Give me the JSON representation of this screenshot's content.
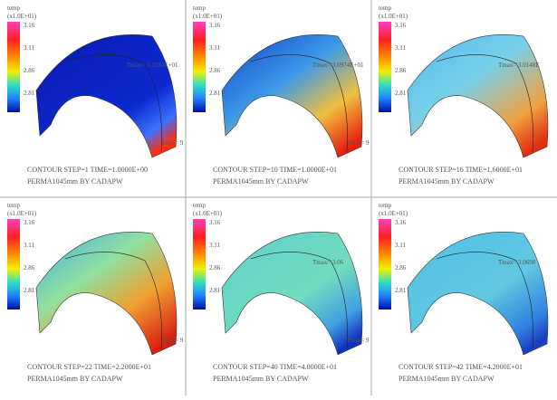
{
  "figure": {
    "panels": [
      {
        "legend_title": "temp",
        "legend_unit": "(x1.0E+01)",
        "scale": [
          "3.16",
          "3.11",
          "2.86",
          "2.81"
        ],
        "max_label": "Tmax= 3.1584E+01",
        "min_label": "Tmin= 9",
        "contour": "CONTOUR  STEP=1   TIME=1.0000E+00",
        "model": "PERMA1045mm BY CADAPW"
      },
      {
        "legend_title": "temp",
        "legend_unit": "(x1.0E+01)",
        "scale": [
          "3.16",
          "3.11",
          "2.86",
          "2.81"
        ],
        "max_label": "Tmax= 3.0974E+01",
        "min_label": "Tmin= 9",
        "contour": "CONTOUR  STEP=10  TIME=1.0000E+01",
        "model": "PERMA1045mm BY CADAPW"
      },
      {
        "legend_title": "temp",
        "legend_unit": "(x1.0E+01)",
        "scale": [
          "3.16",
          "3.11",
          "2.86",
          "2.81"
        ],
        "max_label": "Tmax= 3.0148E",
        "min_label": "",
        "contour": "CONTOUR  STEP=16  TIME=1.6000E+01",
        "model": "PERMA1045mm BY CADAPW"
      },
      {
        "legend_title": "temp",
        "legend_unit": "(x1.0E+01)",
        "scale": [
          "3.16",
          "3.11",
          "2.86",
          "2.81"
        ],
        "max_label": "",
        "min_label": "Tmin= 9",
        "contour": "CONTOUR  STEP=22  TIME=2.2000E+01",
        "model": "PERMA1045mm BY CADAPW"
      },
      {
        "legend_title": "temp",
        "legend_unit": "(x1.0E+01)",
        "scale": [
          "3.16",
          "3.11",
          "2.86",
          "2.81"
        ],
        "max_label": "Tmax= 3.06",
        "min_label": "Tmin= 9",
        "contour": "CONTOUR  STEP=40  TIME=4.0000E+01",
        "model": "PERMA1045mm BY CADAPW"
      },
      {
        "legend_title": "temp",
        "legend_unit": "(x1.0E+01)",
        "scale": [
          "3.16",
          "3.11",
          "2.86",
          "2.81"
        ],
        "max_label": "Tmax= 3.0698",
        "min_label": "",
        "contour": "CONTOUR  STEP=42  TIME=4.2000E+01",
        "model": "PERMA1045mm BY CADAPW"
      }
    ]
  }
}
